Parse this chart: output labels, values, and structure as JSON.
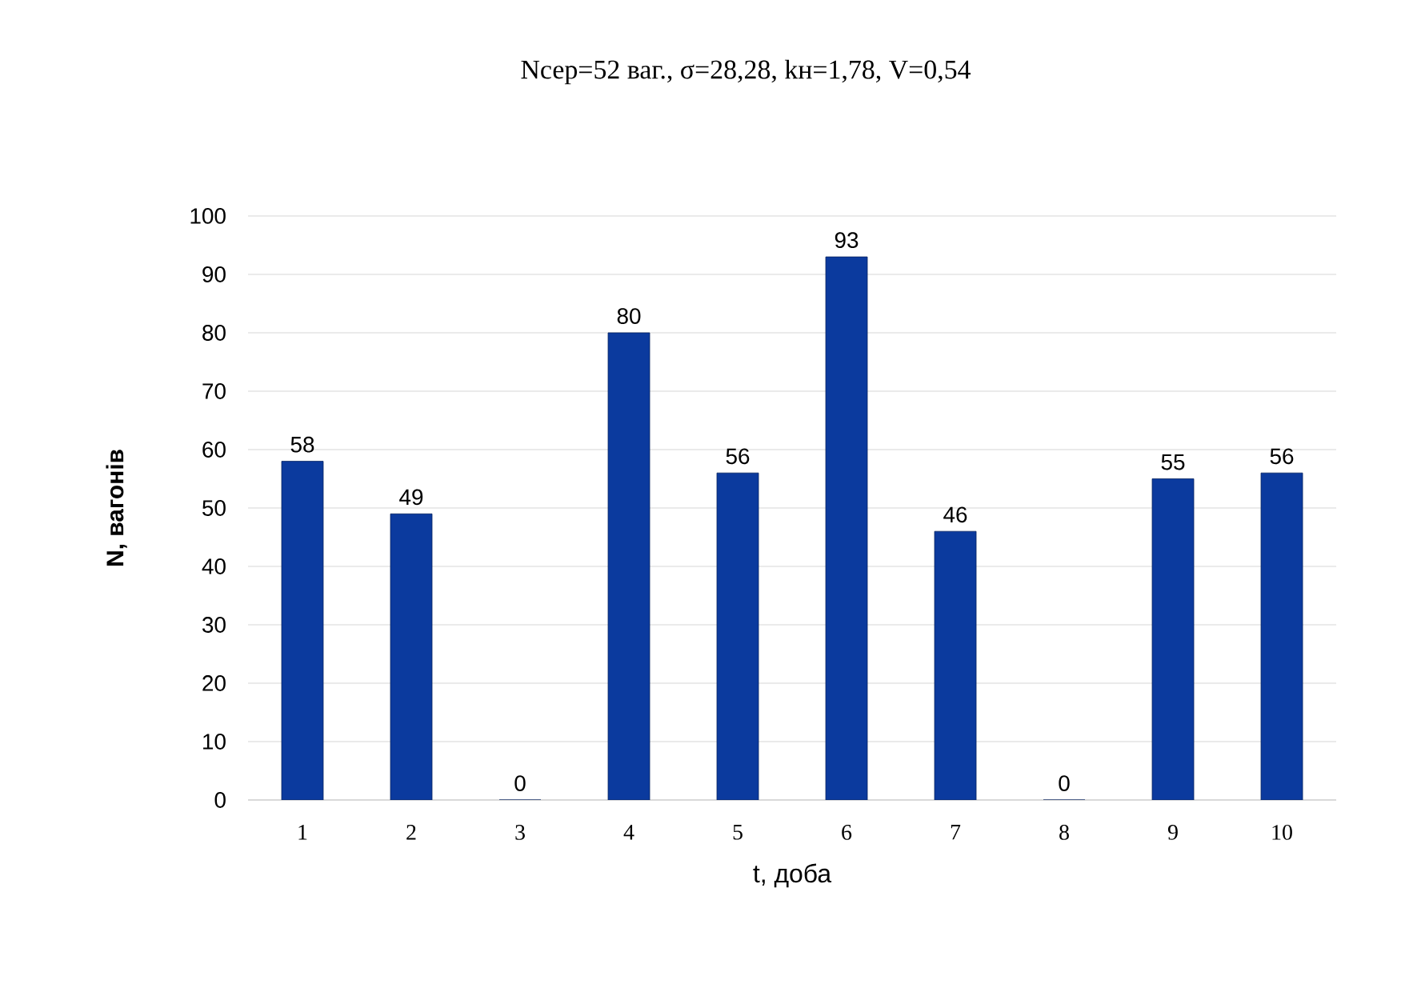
{
  "chart_data": {
    "type": "bar",
    "title": "Nсер=52 ваг., σ=28,28, kн=1,78, V=0,54",
    "xlabel": "t, доба",
    "ylabel": "N, вагонів",
    "categories": [
      "1",
      "2",
      "3",
      "4",
      "5",
      "6",
      "7",
      "8",
      "9",
      "10"
    ],
    "values": [
      58,
      49,
      0,
      80,
      56,
      93,
      46,
      0,
      55,
      56
    ],
    "color": "#0b3a9e",
    "ylim": [
      0,
      100
    ],
    "yticks": [
      0,
      10,
      20,
      30,
      40,
      50,
      60,
      70,
      80,
      90,
      100
    ],
    "grid": "y",
    "data_labels": true
  }
}
